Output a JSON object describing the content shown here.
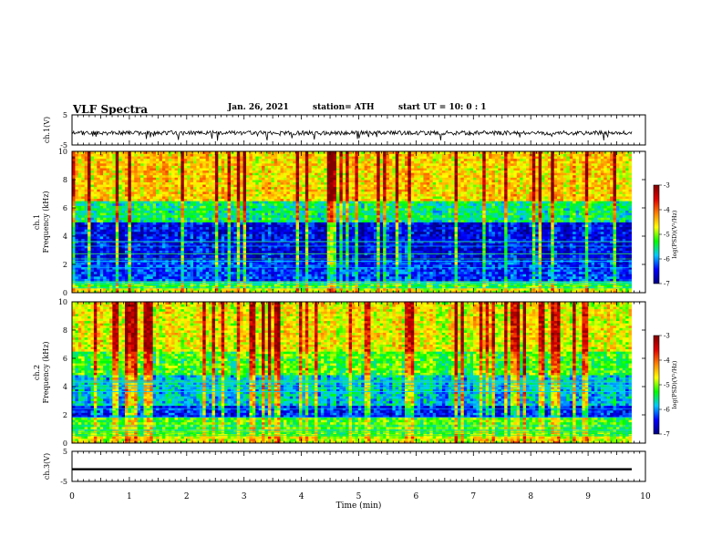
{
  "header": {
    "title": "VLF Spectra",
    "date": "Jan. 26, 2021",
    "station": "station= ATH",
    "start": "start  UT =   10: 0  : 1"
  },
  "colors": {
    "waveform": "#000000",
    "colormap": [
      "#000080",
      "#0000ff",
      "#00c8ff",
      "#00ff00",
      "#ffff00",
      "#ff8000",
      "#e00000",
      "#800000"
    ]
  },
  "chart_data": [
    {
      "type": "line",
      "ylabel": "ch.1(V)",
      "ylim": [
        -5,
        5
      ],
      "yticks": [
        "5",
        "-5"
      ],
      "xlim": [
        0,
        10
      ],
      "description_values": {
        "baseline": -1,
        "noise_range": [
          -2.5,
          0.5
        ]
      }
    },
    {
      "type": "heatmap",
      "ylabel": "ch.1\nFrequency (kHz)",
      "ylim": [
        0,
        10
      ],
      "yticks": [
        "0",
        "2",
        "4",
        "6",
        "8",
        "10"
      ],
      "xlim": [
        0,
        10
      ],
      "colorbar": {
        "label": "log(PSD)(V²/Hz)",
        "range": [
          -7,
          -3
        ],
        "ticks": [
          "-3",
          "-4",
          "-5",
          "-6",
          "-7"
        ]
      }
    },
    {
      "type": "heatmap",
      "ylabel": "ch.2\nFrequency (kHz)",
      "ylim": [
        0,
        10
      ],
      "yticks": [
        "0",
        "2",
        "4",
        "6",
        "8",
        "10"
      ],
      "xlim": [
        0,
        10
      ],
      "colorbar": {
        "label": "log(PSD)(V²/Hz)",
        "range": [
          -7,
          -3
        ],
        "ticks": [
          "-3",
          "-4",
          "-5",
          "-6",
          "-7"
        ]
      }
    },
    {
      "type": "line",
      "ylabel": "ch.3(V)",
      "ylim": [
        -5,
        5
      ],
      "yticks": [
        "5",
        "-5"
      ],
      "xlim": [
        0,
        10
      ],
      "xlabel": "Time (min)",
      "xticks": [
        "0",
        "1",
        "2",
        "3",
        "4",
        "5",
        "6",
        "7",
        "8",
        "9",
        "10"
      ]
    }
  ]
}
